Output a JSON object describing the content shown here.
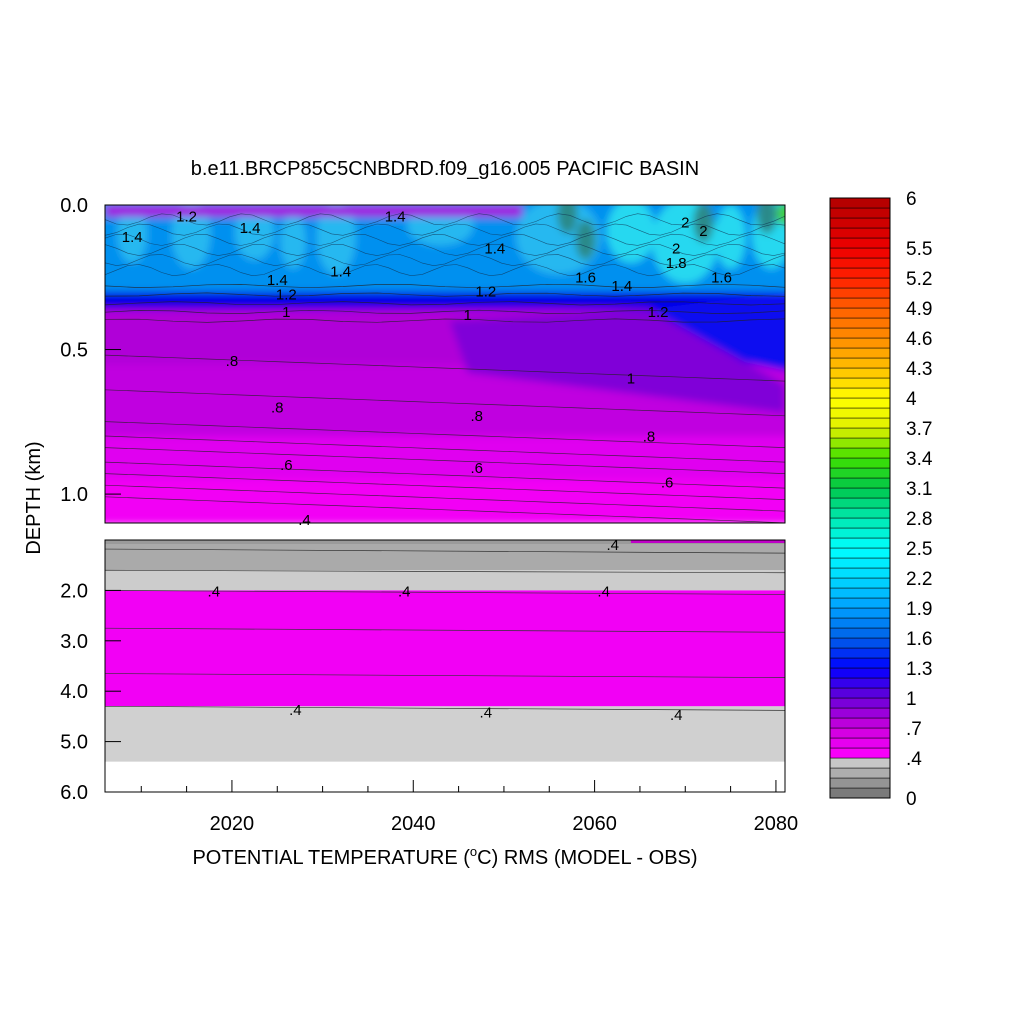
{
  "chart_data": {
    "type": "heatmap",
    "subtype": "filled-contour depth-time section",
    "title": "b.e11.BRCP85C5CNBDRD.f09_g16.005 PACIFIC BASIN",
    "xlabel": "POTENTIAL TEMPERATURE (",
    "xlabel_degree": "o",
    "xlabel_rest": "C) RMS (MODEL - OBS)",
    "ylabel": "DEPTH (km)",
    "x_range": [
      2006,
      2081
    ],
    "x_ticks": [
      "2020",
      "2040",
      "2060",
      "2080"
    ],
    "upper_panel": {
      "depth_range_km": [
        0.0,
        1.1
      ],
      "y_ticks": [
        "0.0",
        "0.5",
        "1.0"
      ],
      "y_tick_values": [
        0.0,
        0.5,
        1.0
      ],
      "layers": [
        {
          "depth": [
            0.0,
            0.3
          ],
          "value": 1.5,
          "color": "#0090ef"
        },
        {
          "depth": [
            0.3,
            0.36
          ],
          "value": 1.2,
          "color": "#0000e6"
        },
        {
          "depth": [
            0.36,
            0.55
          ],
          "value": 0.85,
          "color": "#b000d8"
        },
        {
          "depth": [
            0.55,
            0.8
          ],
          "value": 0.75,
          "color": "#c000e0"
        },
        {
          "depth": [
            0.8,
            0.95
          ],
          "value": 0.65,
          "color": "#e000f0"
        },
        {
          "depth": [
            0.95,
            1.1
          ],
          "value": 0.55,
          "color": "#f200f5"
        }
      ],
      "contour_labels": [
        {
          "text": "1.4",
          "year": 2009,
          "depth": 0.11
        },
        {
          "text": "1.2",
          "year": 2015,
          "depth": 0.04
        },
        {
          "text": "1.4",
          "year": 2022,
          "depth": 0.08
        },
        {
          "text": "1.4",
          "year": 2038,
          "depth": 0.04
        },
        {
          "text": "1.4",
          "year": 2049,
          "depth": 0.15
        },
        {
          "text": "1.4",
          "year": 2025,
          "depth": 0.26
        },
        {
          "text": "1.4",
          "year": 2032,
          "depth": 0.23
        },
        {
          "text": "1.2",
          "year": 2026,
          "depth": 0.31
        },
        {
          "text": "1",
          "year": 2026,
          "depth": 0.37
        },
        {
          "text": "1.2",
          "year": 2048,
          "depth": 0.3
        },
        {
          "text": "1",
          "year": 2046,
          "depth": 0.38
        },
        {
          "text": "1.6",
          "year": 2059,
          "depth": 0.25
        },
        {
          "text": "1.4",
          "year": 2063,
          "depth": 0.28
        },
        {
          "text": "1.2",
          "year": 2067,
          "depth": 0.37
        },
        {
          "text": "1.6",
          "year": 2074,
          "depth": 0.25
        },
        {
          "text": "1.8",
          "year": 2069,
          "depth": 0.2
        },
        {
          "text": "2",
          "year": 2069,
          "depth": 0.15
        },
        {
          "text": "2",
          "year": 2070,
          "depth": 0.06
        },
        {
          "text": "2",
          "year": 2072,
          "depth": 0.09
        },
        {
          "text": "1",
          "year": 2064,
          "depth": 0.6
        },
        {
          "text": ".8",
          "year": 2020,
          "depth": 0.54
        },
        {
          "text": ".8",
          "year": 2025,
          "depth": 0.7
        },
        {
          "text": ".8",
          "year": 2047,
          "depth": 0.73
        },
        {
          "text": ".8",
          "year": 2066,
          "depth": 0.8
        },
        {
          "text": ".6",
          "year": 2026,
          "depth": 0.9
        },
        {
          "text": ".6",
          "year": 2047,
          "depth": 0.91
        },
        {
          "text": ".6",
          "year": 2068,
          "depth": 0.96
        },
        {
          "text": ".4",
          "year": 2028,
          "depth": 1.09
        }
      ]
    },
    "lower_panel": {
      "depth_range_km": [
        1.0,
        6.0
      ],
      "y_ticks": [
        "2.0",
        "3.0",
        "4.0",
        "5.0",
        "6.0"
      ],
      "y_tick_values": [
        2.0,
        3.0,
        4.0,
        5.0,
        6.0
      ],
      "layers": [
        {
          "depth": [
            1.0,
            1.6
          ],
          "value": 0.3,
          "color": "#aaaaaa"
        },
        {
          "depth": [
            1.6,
            2.0
          ],
          "value": 0.35,
          "color": "#cccccc"
        },
        {
          "depth": [
            2.0,
            4.3
          ],
          "value": 0.45,
          "color": "#f200f5"
        },
        {
          "depth": [
            4.3,
            5.4
          ],
          "value": 0.38,
          "color": "#d0d0d0"
        },
        {
          "depth": [
            5.4,
            6.0
          ],
          "value": null,
          "color": "#ffffff"
        }
      ],
      "contour_labels": [
        {
          "text": ".4",
          "year": 2062,
          "depth": 1.08
        },
        {
          "text": ".4",
          "year": 2018,
          "depth": 2.0
        },
        {
          "text": ".4",
          "year": 2039,
          "depth": 2.0
        },
        {
          "text": ".4",
          "year": 2061,
          "depth": 2.0
        },
        {
          "text": ".4",
          "year": 2027,
          "depth": 4.35
        },
        {
          "text": ".4",
          "year": 2048,
          "depth": 4.4
        },
        {
          "text": ".4",
          "year": 2069,
          "depth": 4.45
        }
      ]
    },
    "colorbar": {
      "range": [
        0,
        6
      ],
      "tick_labels": [
        "6",
        "5.5",
        "5.2",
        "4.9",
        "4.6",
        "4.3",
        "4",
        "3.7",
        "3.4",
        "3.1",
        "2.8",
        "2.5",
        "2.2",
        "1.9",
        "1.6",
        "1.3",
        "1",
        ".7",
        ".4",
        "0"
      ],
      "tick_values": [
        6.0,
        5.5,
        5.2,
        4.9,
        4.6,
        4.3,
        4.0,
        3.7,
        3.4,
        3.1,
        2.8,
        2.5,
        2.2,
        1.9,
        1.6,
        1.3,
        1.0,
        0.7,
        0.4,
        0.0
      ],
      "stops": [
        {
          "v": 0.0,
          "color": "#6e6e6e"
        },
        {
          "v": 0.4,
          "color": "#d4d4d4"
        },
        {
          "v": 0.41,
          "color": "#ff00ff"
        },
        {
          "v": 0.7,
          "color": "#cc00dd"
        },
        {
          "v": 1.0,
          "color": "#6a00d8"
        },
        {
          "v": 1.3,
          "color": "#0000ff"
        },
        {
          "v": 1.6,
          "color": "#0060e8"
        },
        {
          "v": 1.9,
          "color": "#00a0ff"
        },
        {
          "v": 2.2,
          "color": "#00d8ff"
        },
        {
          "v": 2.5,
          "color": "#00ffff"
        },
        {
          "v": 2.8,
          "color": "#00e8b0"
        },
        {
          "v": 3.1,
          "color": "#00c84a"
        },
        {
          "v": 3.4,
          "color": "#40e000"
        },
        {
          "v": 3.7,
          "color": "#e0f000"
        },
        {
          "v": 4.0,
          "color": "#ffff00"
        },
        {
          "v": 4.3,
          "color": "#ffc000"
        },
        {
          "v": 4.6,
          "color": "#ff8c00"
        },
        {
          "v": 4.9,
          "color": "#ff6000"
        },
        {
          "v": 5.2,
          "color": "#ff2000"
        },
        {
          "v": 5.5,
          "color": "#ee0000"
        },
        {
          "v": 6.0,
          "color": "#b00000"
        }
      ]
    }
  }
}
